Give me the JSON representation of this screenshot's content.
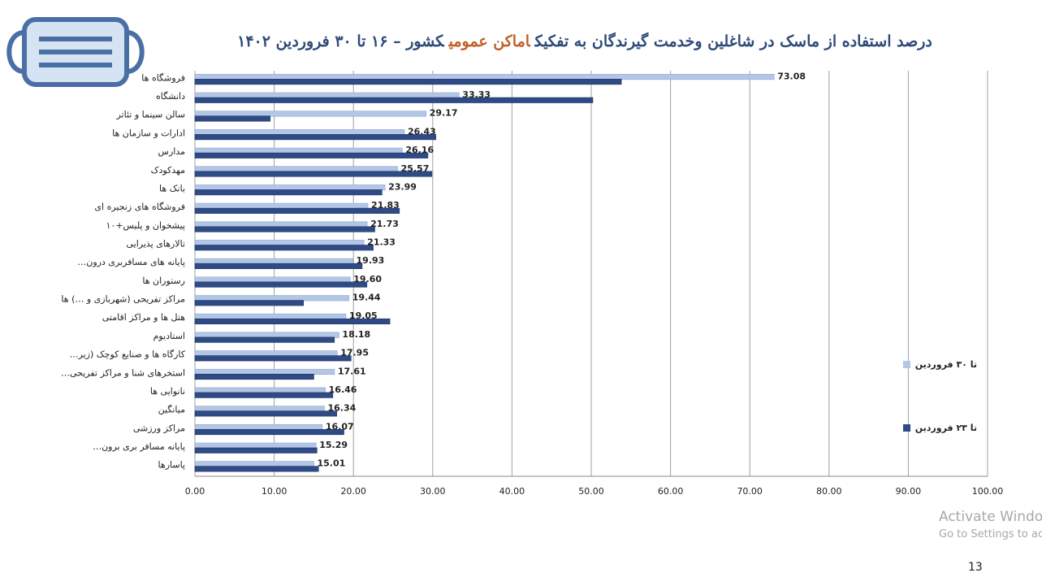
{
  "chart_data": {
    "type": "bar",
    "orientation": "horizontal",
    "title_segments": [
      {
        "text": "درصد استفاده از ماسک در شاغلین وخدمت گیرندگان به تفکیک",
        "color": "#2e4a7a"
      },
      {
        "text": "اماکن عمومی",
        "color": "#c0602a"
      },
      {
        "text": "کشور  – ۱۶ تا ۳۰ فروردین ۱۴۰۲",
        "color": "#2e4a7a"
      }
    ],
    "categories": [
      "فروشگاه ها",
      "دانشگاه",
      "سالن سینما و تئاتر",
      "ادارات و سازمان ها",
      "مدارس",
      "مهدکودک",
      "بانک ها",
      "فروشگاه های زنجیره ای",
      "پیشخوان و پلیس+۱۰",
      "تالارهای پذیرایی",
      "پایانه های مسافربری درون…",
      "رستوران ها",
      "مراکز تفریحی (شهربازی و …) ها",
      "هتل ها و مراکز اقامتی",
      "استادیوم",
      "کارگاه ها و صنایع کوچک (زیر…",
      "استخرهای شنا و مراکز تفریحی…",
      "نانوایی ها",
      "میانگین",
      "مراکز ورزشی",
      "پایانه مسافر بری برون…",
      "پاسارها"
    ],
    "series": [
      {
        "name": "تا ۳۰ فروردین",
        "color": "#b4c6e6",
        "values": [
          73.08,
          33.33,
          29.17,
          26.43,
          26.16,
          25.57,
          23.99,
          21.83,
          21.73,
          21.33,
          19.93,
          19.6,
          19.44,
          19.05,
          18.18,
          17.95,
          17.61,
          16.46,
          16.34,
          16.07,
          15.29,
          15.01
        ],
        "value_labels": [
          "73.08",
          "33.33",
          "29.17",
          "26.43",
          "26.16",
          "25.57",
          "23.99",
          "21.83",
          "21.73",
          "21.33",
          "19.93",
          "19.60",
          "19.44",
          "19.05",
          "18.18",
          "17.95",
          "17.61",
          "16.46",
          "16.34",
          "16.07",
          "15.29",
          "15.01"
        ]
      },
      {
        "name": "تا ۲۳ فروردین",
        "color": "#2f4b85",
        "values": [
          53.8,
          50.2,
          9.5,
          30.4,
          29.4,
          29.9,
          23.6,
          25.8,
          22.7,
          22.5,
          21.1,
          21.7,
          13.7,
          24.6,
          17.6,
          19.7,
          15.0,
          17.4,
          17.9,
          18.8,
          15.4,
          15.6
        ]
      }
    ],
    "xlim": [
      0,
      100
    ],
    "xticks": [
      {
        "value": 0,
        "label": "0.00"
      },
      {
        "value": 10,
        "label": "10.00"
      },
      {
        "value": 20,
        "label": "20.00"
      },
      {
        "value": 30,
        "label": "30.00"
      },
      {
        "value": 40,
        "label": "40.00"
      },
      {
        "value": 50,
        "label": "50.00"
      },
      {
        "value": 60,
        "label": "60.00"
      },
      {
        "value": 70,
        "label": "70.00"
      },
      {
        "value": 80,
        "label": "80.00"
      },
      {
        "value": 90,
        "label": "90.00"
      },
      {
        "value": 100,
        "label": "100.00"
      }
    ],
    "grid": true,
    "legend": "right"
  },
  "watermark": [
    "Activate Windows",
    "Go to Settings to activate Windows."
  ],
  "page_number": 13
}
